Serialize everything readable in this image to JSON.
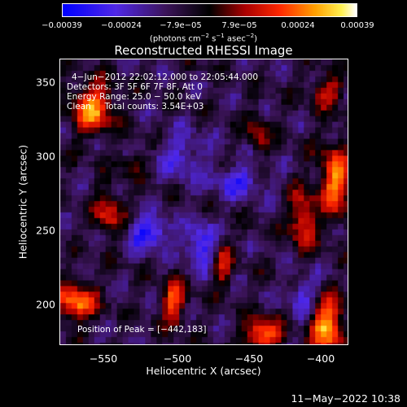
{
  "colorbar": {
    "ticks": [
      "−0.00039",
      "−0.00024",
      "−7.9e−05",
      "7.9e−05",
      "0.00024",
      "0.00039"
    ],
    "unit_prefix": "(photons cm",
    "unit_sup1": "−2",
    "unit_mid1": " s",
    "unit_sup2": "−1",
    "unit_mid2": " asec",
    "unit_sup3": "−2",
    "unit_suffix": ")"
  },
  "title": "Reconstructed RHESSI Image",
  "overlay": {
    "line1": "4−Jun−2012 22:02:12.000 to 22:05:44.000",
    "line2": "Detectors: 3F 5F 6F 7F 8F, Att 0",
    "line3": "Energy Range: 25.0 − 50.0 keV",
    "line4": "Clean     Total counts: 3.54E+03",
    "peak": "Position of Peak = [−442,183]"
  },
  "axes": {
    "xlabel": "Heliocentric X (arcsec)",
    "ylabel": "Heliocentric Y (arcsec)",
    "xticks": [
      "−550",
      "−500",
      "−450",
      "−400"
    ],
    "yticks": [
      "350",
      "300",
      "250",
      "200"
    ]
  },
  "footer": {
    "date": "11−May−2022 10:38"
  }
}
